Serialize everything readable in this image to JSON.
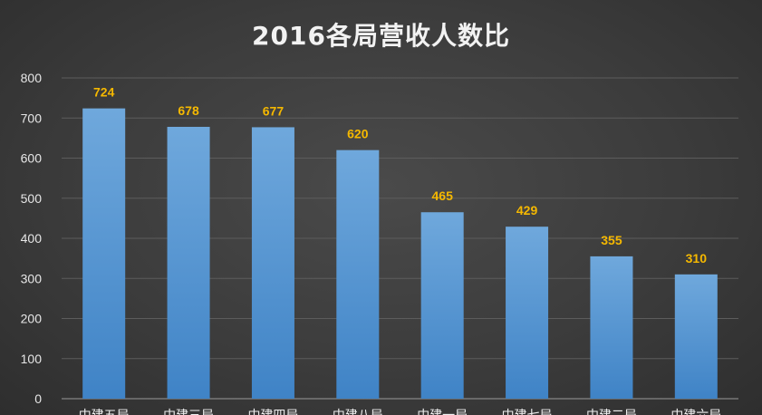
{
  "chart_data": {
    "type": "bar",
    "title": "2016各局营收人数比",
    "categories": [
      "中建五局",
      "中建三局",
      "中建四局",
      "中建八局",
      "中建一局",
      "中建七局",
      "中建二局",
      "中建六局"
    ],
    "values": [
      724,
      678,
      677,
      620,
      465,
      429,
      355,
      310
    ],
    "ylim": [
      0,
      800
    ],
    "yticks": [
      0,
      100,
      200,
      300,
      400,
      500,
      600,
      700,
      800
    ],
    "xlabel": "",
    "ylabel": "",
    "grid": true,
    "legend": "none",
    "colors": {
      "bar_top": "#6fa8dc",
      "bar_bottom": "#3f83c6",
      "data_label": "#f5b800",
      "background": "#3c3c3c"
    }
  }
}
